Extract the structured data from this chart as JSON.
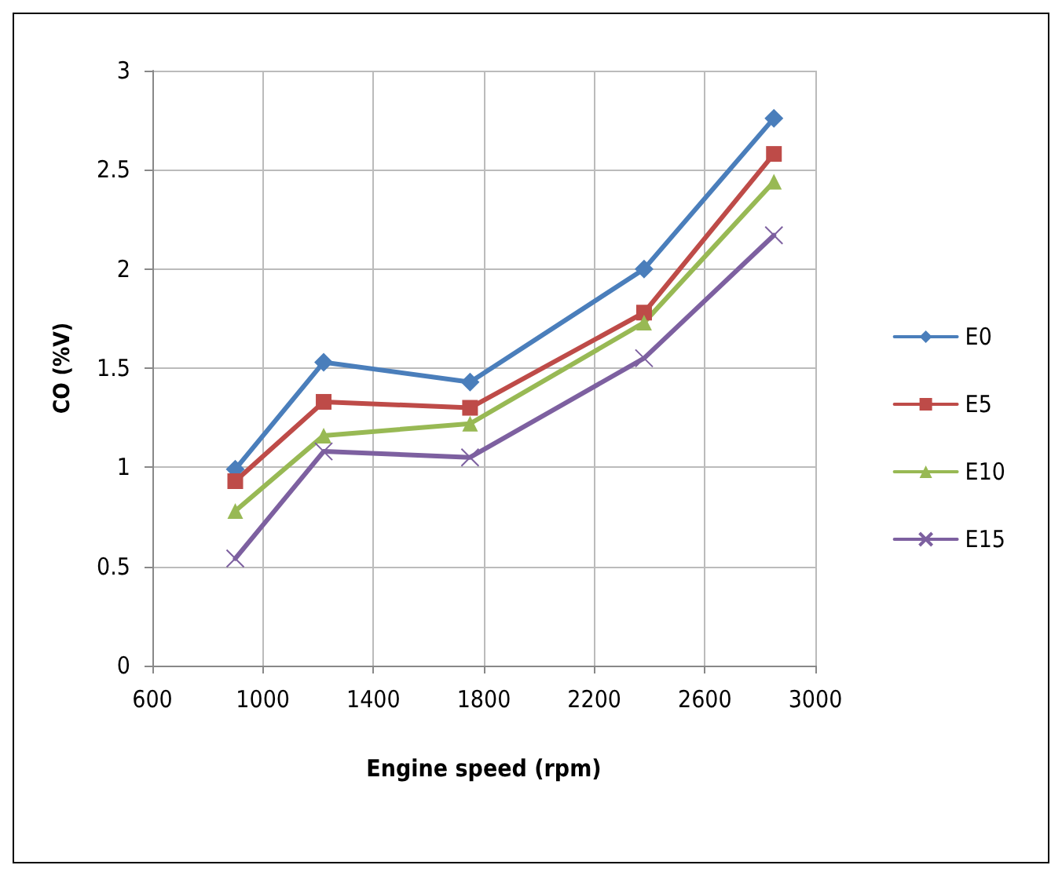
{
  "chart_data": {
    "type": "line",
    "xlabel": "Engine speed (rpm)",
    "ylabel": "CO (%V)",
    "x": [
      900,
      1220,
      1750,
      2380,
      2850
    ],
    "xlim": [
      600,
      3000
    ],
    "xticks": [
      600,
      1000,
      1400,
      1800,
      2200,
      2600,
      3000
    ],
    "ylim": [
      0,
      3
    ],
    "yticks": [
      0,
      0.5,
      1,
      1.5,
      2,
      2.5,
      3
    ],
    "grid": true,
    "legend": "right",
    "line_style": "solid",
    "series": [
      {
        "name": "E0",
        "color": "#4a7ebb",
        "marker": "diamond",
        "values": [
          0.99,
          1.53,
          1.43,
          2.0,
          2.76
        ]
      },
      {
        "name": "E5",
        "color": "#be4b48",
        "marker": "square",
        "values": [
          0.93,
          1.33,
          1.3,
          1.78,
          2.58
        ]
      },
      {
        "name": "E10",
        "color": "#98b954",
        "marker": "triangle",
        "values": [
          0.78,
          1.16,
          1.22,
          1.73,
          2.44
        ]
      },
      {
        "name": "E15",
        "color": "#7d60a0",
        "marker": "cross",
        "values": [
          0.54,
          1.08,
          1.05,
          1.55,
          2.17
        ]
      }
    ]
  }
}
